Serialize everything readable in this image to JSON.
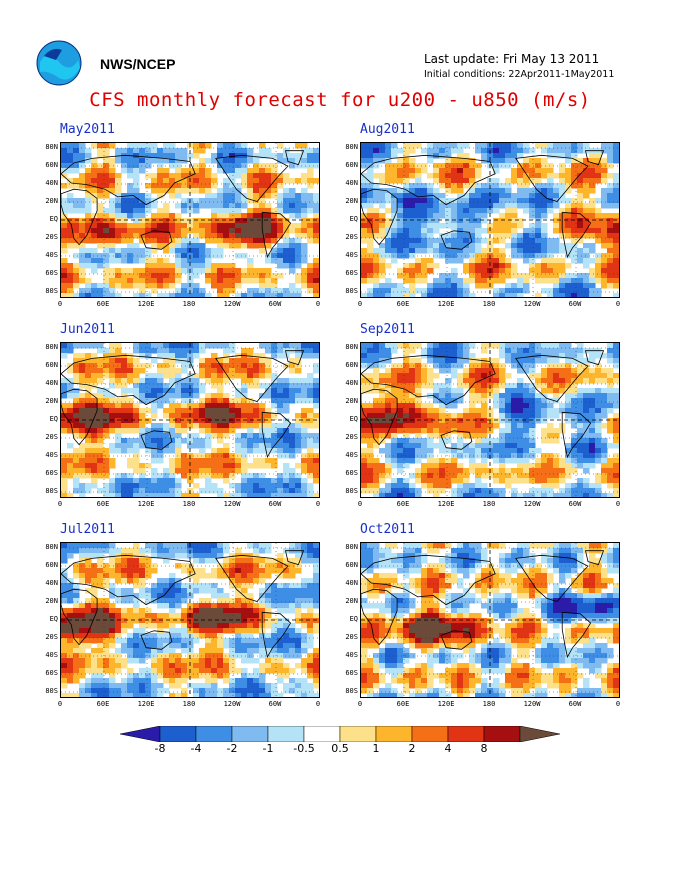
{
  "header": {
    "org": "NWS/NCEP",
    "last_update": "Last update: Fri May 13 2011",
    "initial_conditions": "Initial conditions: 22Apr2011-1May2011",
    "title": "CFS monthly forecast for u200 - u850 (m/s)"
  },
  "colors": {
    "title": "#e00000",
    "panel_title": "#1830c8",
    "palette": [
      "#2a1ca8",
      "#1e5fd0",
      "#3f8ee6",
      "#7fbaf0",
      "#b4e3f8",
      "#ffffff",
      "#fde08a",
      "#fdb52c",
      "#f46f15",
      "#e03414",
      "#a50f0f",
      "#6b4a3a"
    ]
  },
  "axes": {
    "lat_labels": [
      "80N",
      "60N",
      "40N",
      "20N",
      "EQ",
      "20S",
      "40S",
      "60S",
      "80S"
    ],
    "lon_labels": [
      "0",
      "60E",
      "120E",
      "180",
      "120W",
      "60W",
      "0"
    ]
  },
  "panels": [
    {
      "id": "may",
      "title": "May2011"
    },
    {
      "id": "aug",
      "title": "Aug2011"
    },
    {
      "id": "jun",
      "title": "Jun2011"
    },
    {
      "id": "sep",
      "title": "Sep2011"
    },
    {
      "id": "jul",
      "title": "Jul2011"
    },
    {
      "id": "oct",
      "title": "Oct2011"
    }
  ],
  "colorbar": {
    "labels": [
      "-8",
      "-4",
      "-2",
      "-1",
      "-0.5",
      "0.5",
      "1",
      "2",
      "4",
      "8"
    ]
  }
}
